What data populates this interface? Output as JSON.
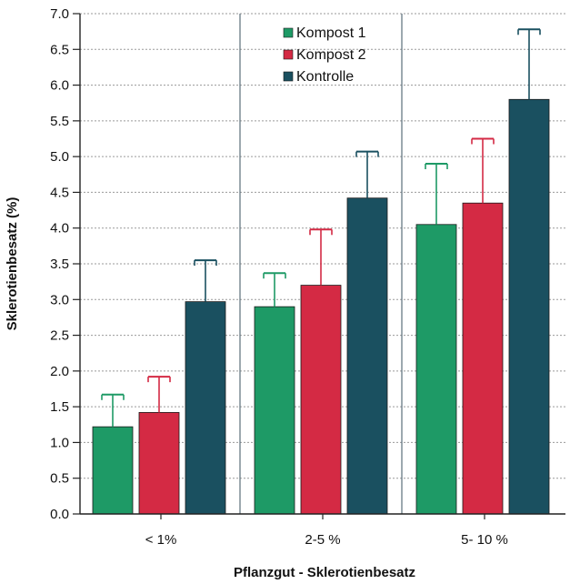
{
  "chart_data": {
    "type": "bar",
    "title": "",
    "xlabel": "Pflanzgut - Sklerotienbesatz",
    "ylabel": "Sklerotienbesatz (%)",
    "ylim": [
      0,
      7
    ],
    "yticks": [
      "0.0",
      "0.5",
      "1.0",
      "1.5",
      "2.0",
      "2.5",
      "3.0",
      "3.5",
      "4.0",
      "4.5",
      "5.0",
      "5.5",
      "6.0",
      "6.5",
      "7.0"
    ],
    "categories": [
      "< 1%",
      "2-5 %",
      "5- 10 %"
    ],
    "series": [
      {
        "name": "Kompost 1",
        "color": "#1e9a66",
        "values": [
          1.22,
          2.9,
          4.05
        ],
        "errors": [
          0.45,
          0.47,
          0.85
        ]
      },
      {
        "name": "Kompost 2",
        "color": "#d42a44",
        "values": [
          1.42,
          3.2,
          4.35
        ],
        "errors": [
          0.5,
          0.78,
          0.9
        ]
      },
      {
        "name": "Kontrolle",
        "color": "#1a5060",
        "values": [
          2.97,
          4.42,
          5.8
        ],
        "errors": [
          0.58,
          0.65,
          0.98
        ]
      }
    ],
    "grid": "horizontal dotted",
    "legend": "top-center"
  }
}
